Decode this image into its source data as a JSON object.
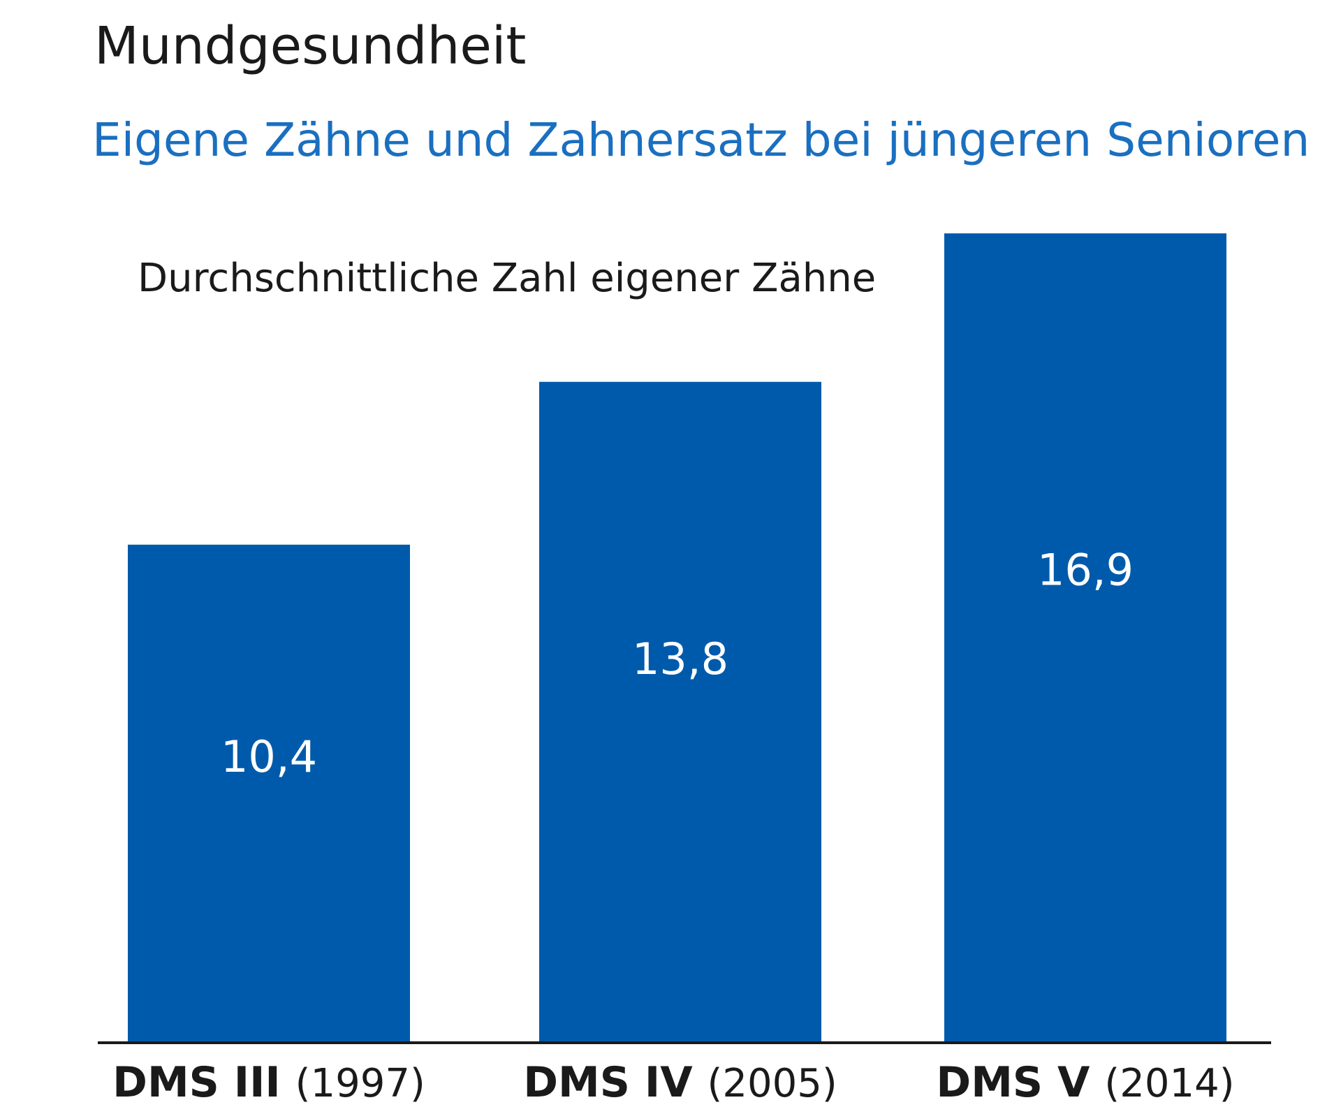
{
  "chart_data": {
    "type": "bar",
    "title": "Mundgesundheit",
    "subtitle": "Eigene Zähne und Zahnersatz bei jüngeren Senioren",
    "ylabel": "Durchschnittliche Zahl eigener Zähne",
    "categories": [
      "DMS III (1997)",
      "DMS IV (2005)",
      "DMS V (2014)"
    ],
    "category_parts": [
      {
        "name": "DMS III",
        "year": "(1997)"
      },
      {
        "name": "DMS IV",
        "year": "(2005)"
      },
      {
        "name": "DMS V",
        "year": "(2014)"
      }
    ],
    "values": [
      10.4,
      13.8,
      16.9
    ],
    "value_labels": [
      "10,4",
      "13,8",
      "16,9"
    ],
    "ylim": [
      0,
      17.5
    ],
    "grid": false,
    "legend": "none",
    "colors": {
      "bar": "#005aab",
      "subtitle": "#1a6fc0",
      "text": "#1a1a1a",
      "axis": "#1a1a1a"
    }
  }
}
